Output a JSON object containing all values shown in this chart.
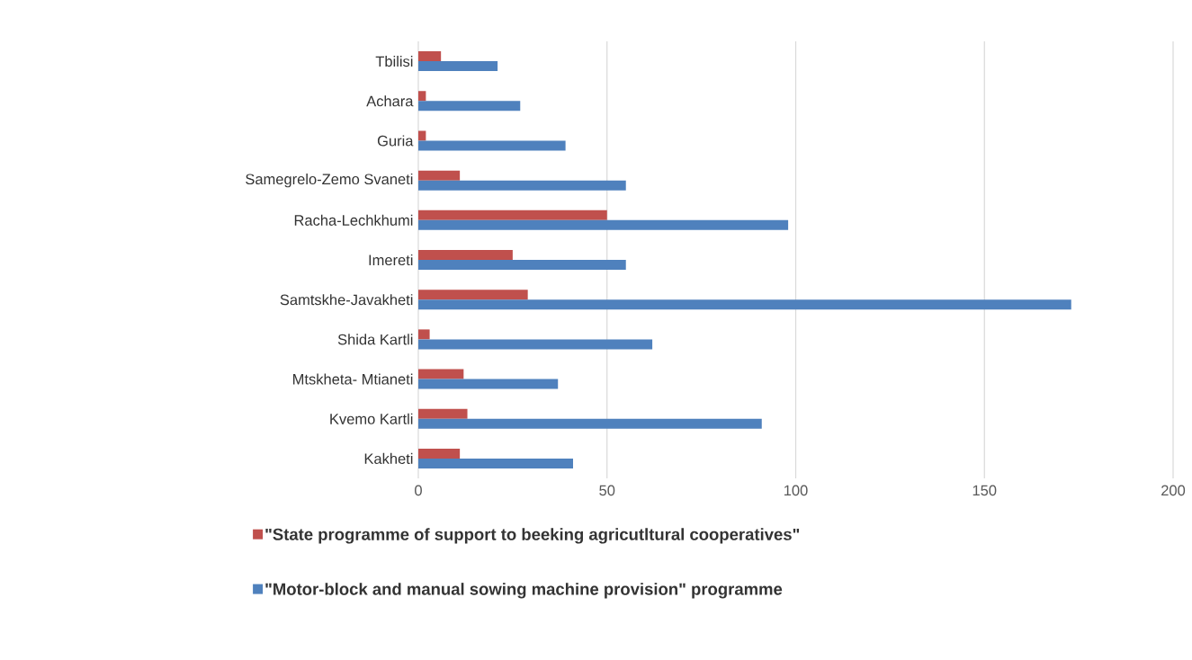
{
  "chart_data": {
    "type": "bar",
    "orientation": "horizontal",
    "categories": [
      "Tbilisi",
      "Achara",
      "Guria",
      "Samegrelo-Zemo Svaneti",
      "Racha-Lechkhumi",
      "Imereti",
      "Samtskhe-Javakheti",
      "Shida Kartli",
      "Mtskheta- Mtianeti",
      "Kvemo Kartli",
      "Kakheti"
    ],
    "series": [
      {
        "name": "\"State programme of support to beeking agricutltural cooperatives\"",
        "color": "#c0504d",
        "values": [
          6,
          2,
          2,
          11,
          50,
          25,
          29,
          3,
          12,
          13,
          11
        ]
      },
      {
        "name": "\"Motor-block and manual sowing machine provision\" programme",
        "color": "#4f81bd",
        "values": [
          21,
          27,
          39,
          55,
          98,
          55,
          173,
          62,
          37,
          91,
          41
        ]
      }
    ],
    "xlim": [
      0,
      200
    ],
    "xticks": [
      0,
      50,
      100,
      150,
      200
    ],
    "grid": "x",
    "legend": "bottom"
  }
}
